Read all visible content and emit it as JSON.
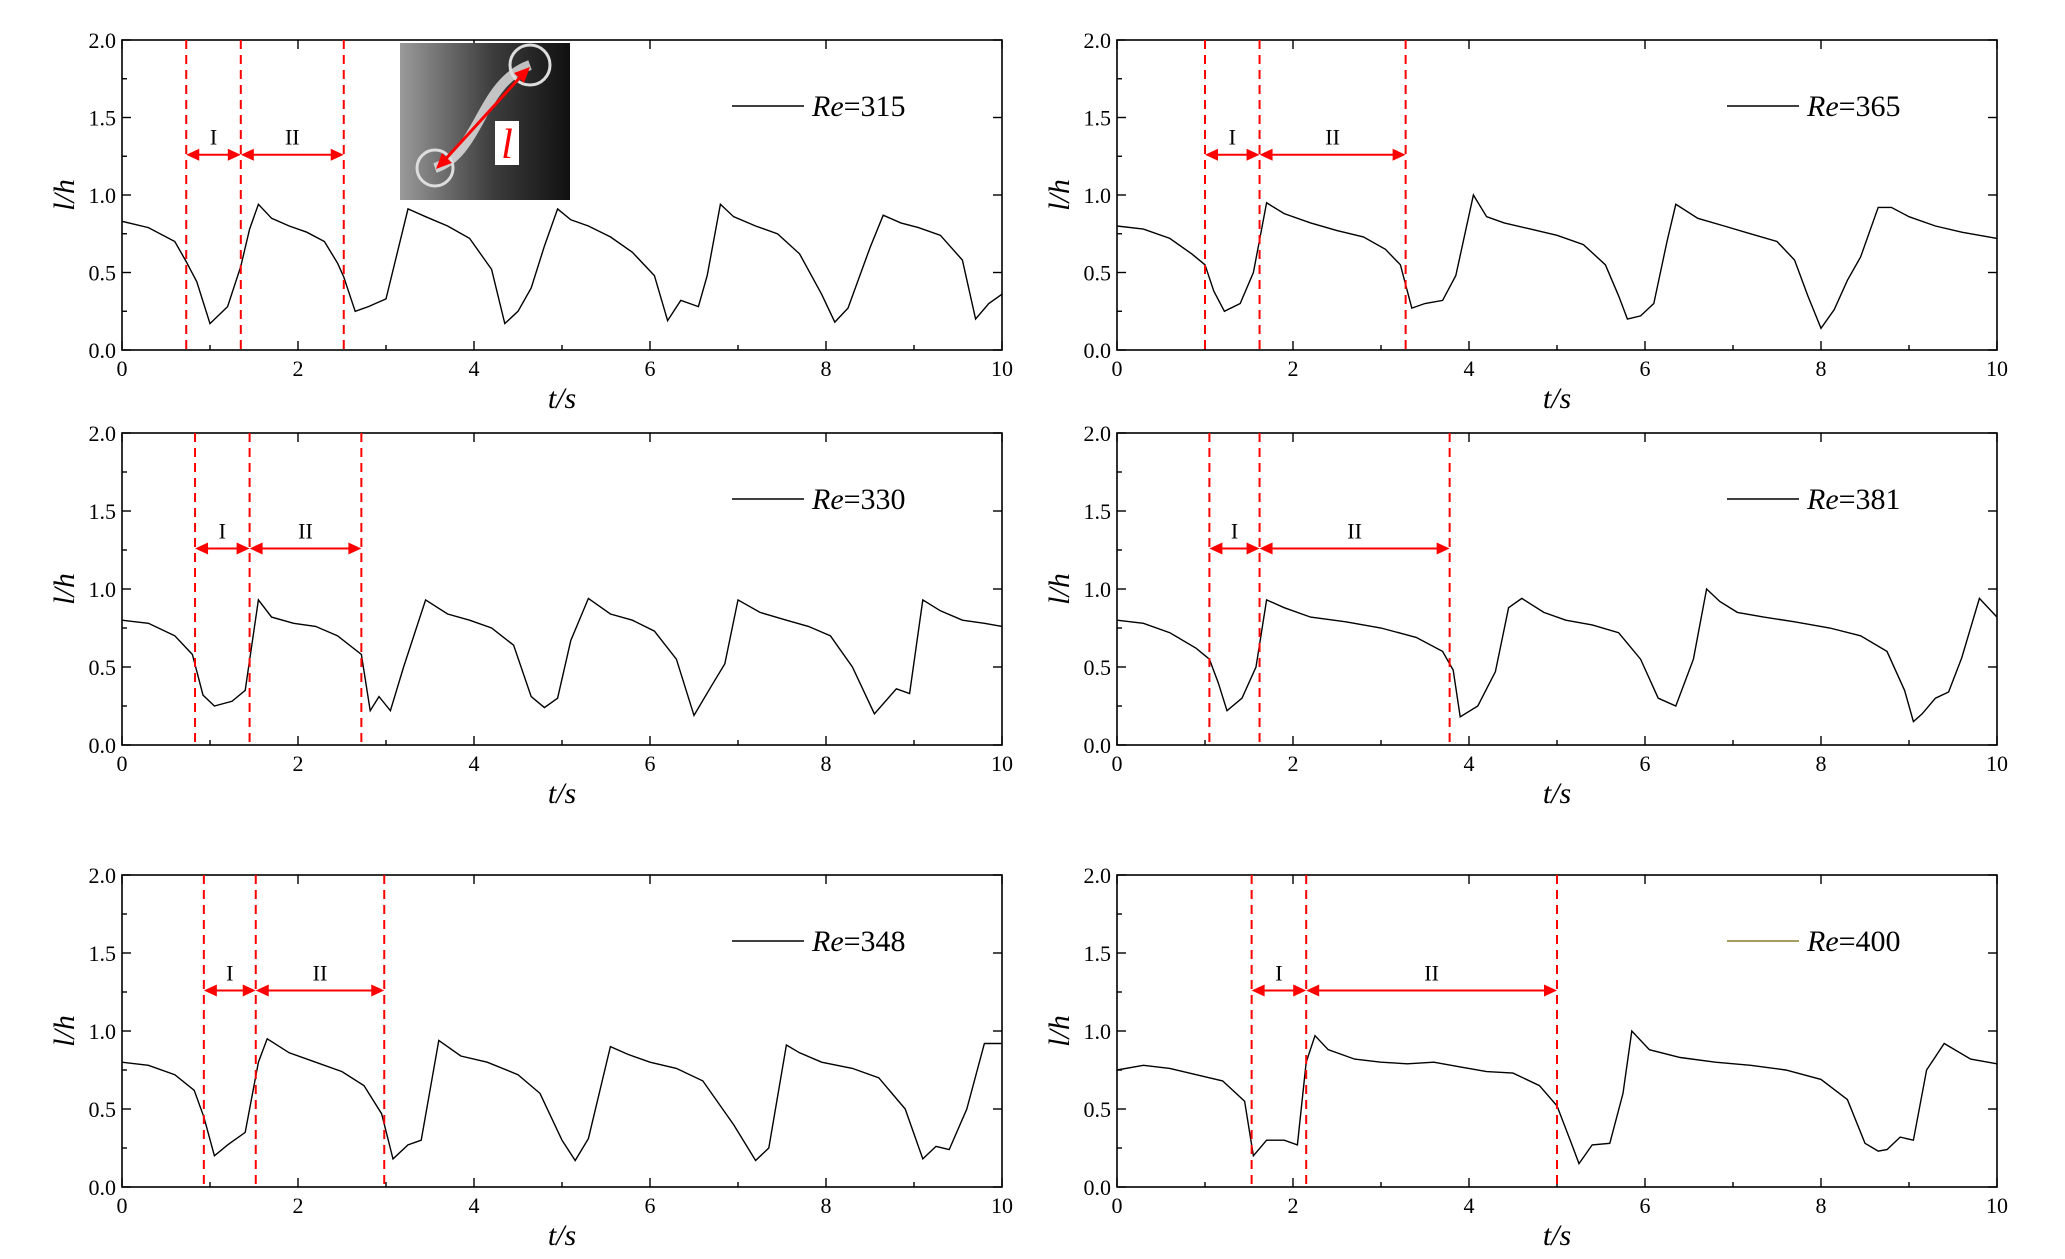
{
  "chart_data": [
    {
      "type": "line",
      "legend": "Re=315",
      "legend_color": "#000000",
      "legend_placement": "top-right",
      "xlabel": "t/s",
      "ylabel": "l/h",
      "xlim": [
        0,
        10
      ],
      "ylim": [
        0,
        2
      ],
      "xticks": [
        "0",
        "2",
        "4",
        "6",
        "8",
        "10"
      ],
      "yticks": [
        "0.0",
        "0.5",
        "1.0",
        "1.5",
        "2.0"
      ],
      "region_bounds": [
        0.73,
        1.35,
        2.52
      ],
      "regions": [
        "I",
        "II"
      ],
      "has_inset": true,
      "inset_label": "l",
      "series": [
        {
          "x": [
            0,
            0.3,
            0.6,
            0.73,
            0.85,
            1.0,
            1.2,
            1.35,
            1.45,
            1.55,
            1.7,
            1.9,
            2.1,
            2.3,
            2.45,
            2.52,
            2.65,
            2.8,
            3.0,
            3.25,
            3.45,
            3.7,
            3.95,
            4.2,
            4.35,
            4.5,
            4.65,
            4.8,
            4.95,
            5.1,
            5.3,
            5.55,
            5.8,
            6.05,
            6.2,
            6.35,
            6.55,
            6.65,
            6.8,
            6.95,
            7.2,
            7.45,
            7.7,
            7.95,
            8.1,
            8.25,
            8.5,
            8.65,
            8.85,
            9.05,
            9.3,
            9.55,
            9.7,
            9.85,
            10.0
          ],
          "y": [
            0.83,
            0.79,
            0.7,
            0.57,
            0.44,
            0.17,
            0.28,
            0.54,
            0.78,
            0.94,
            0.85,
            0.8,
            0.76,
            0.7,
            0.56,
            0.47,
            0.25,
            0.28,
            0.33,
            0.91,
            0.86,
            0.8,
            0.72,
            0.52,
            0.17,
            0.25,
            0.4,
            0.67,
            0.91,
            0.84,
            0.8,
            0.73,
            0.63,
            0.48,
            0.19,
            0.32,
            0.28,
            0.48,
            0.94,
            0.86,
            0.8,
            0.75,
            0.62,
            0.36,
            0.18,
            0.27,
            0.66,
            0.87,
            0.82,
            0.79,
            0.74,
            0.58,
            0.2,
            0.3,
            0.36
          ]
        }
      ]
    },
    {
      "type": "line",
      "legend": "Re=330",
      "legend_color": "#000000",
      "legend_placement": "top-right",
      "xlabel": "t/s",
      "ylabel": "l/h",
      "xlim": [
        0,
        10
      ],
      "ylim": [
        0,
        2
      ],
      "xticks": [
        "0",
        "2",
        "4",
        "6",
        "8",
        "10"
      ],
      "yticks": [
        "0.0",
        "0.5",
        "1.0",
        "1.5",
        "2.0"
      ],
      "region_bounds": [
        0.83,
        1.45,
        2.72
      ],
      "regions": [
        "I",
        "II"
      ],
      "has_inset": false,
      "series": [
        {
          "x": [
            0,
            0.3,
            0.6,
            0.8,
            0.92,
            1.05,
            1.25,
            1.4,
            1.55,
            1.7,
            1.95,
            2.2,
            2.45,
            2.72,
            2.82,
            2.92,
            3.05,
            3.2,
            3.45,
            3.7,
            3.95,
            4.2,
            4.45,
            4.65,
            4.8,
            4.95,
            5.1,
            5.3,
            5.55,
            5.8,
            6.05,
            6.3,
            6.5,
            6.7,
            6.85,
            7.0,
            7.25,
            7.55,
            7.8,
            8.05,
            8.3,
            8.55,
            8.8,
            8.95,
            9.1,
            9.3,
            9.55,
            9.8,
            10.0
          ],
          "y": [
            0.8,
            0.78,
            0.7,
            0.58,
            0.32,
            0.25,
            0.28,
            0.35,
            0.93,
            0.82,
            0.78,
            0.76,
            0.7,
            0.58,
            0.22,
            0.31,
            0.22,
            0.5,
            0.93,
            0.84,
            0.8,
            0.75,
            0.64,
            0.31,
            0.24,
            0.3,
            0.67,
            0.94,
            0.84,
            0.8,
            0.73,
            0.55,
            0.19,
            0.38,
            0.52,
            0.93,
            0.85,
            0.8,
            0.76,
            0.7,
            0.5,
            0.2,
            0.36,
            0.33,
            0.93,
            0.86,
            0.8,
            0.78,
            0.76
          ]
        }
      ]
    },
    {
      "type": "line",
      "legend": "Re=348",
      "legend_color": "#000000",
      "legend_placement": "top-right",
      "xlabel": "t/s",
      "ylabel": "l/h",
      "xlim": [
        0,
        10
      ],
      "ylim": [
        0,
        2
      ],
      "xticks": [
        "0",
        "2",
        "4",
        "6",
        "8",
        "10"
      ],
      "yticks": [
        "0.0",
        "0.5",
        "1.0",
        "1.5",
        "2.0"
      ],
      "region_bounds": [
        0.93,
        1.52,
        2.98
      ],
      "regions": [
        "I",
        "II"
      ],
      "has_inset": false,
      "series": [
        {
          "x": [
            0,
            0.3,
            0.6,
            0.82,
            0.93,
            1.05,
            1.2,
            1.4,
            1.55,
            1.65,
            1.9,
            2.2,
            2.5,
            2.75,
            2.95,
            3.08,
            3.25,
            3.4,
            3.6,
            3.85,
            4.15,
            4.5,
            4.75,
            5.0,
            5.15,
            5.3,
            5.55,
            5.75,
            6.0,
            6.3,
            6.6,
            6.95,
            7.2,
            7.35,
            7.55,
            7.7,
            7.95,
            8.3,
            8.6,
            8.9,
            9.1,
            9.25,
            9.4,
            9.6,
            9.8,
            10.0
          ],
          "y": [
            0.8,
            0.78,
            0.72,
            0.62,
            0.45,
            0.2,
            0.27,
            0.35,
            0.8,
            0.95,
            0.86,
            0.8,
            0.74,
            0.65,
            0.47,
            0.18,
            0.27,
            0.3,
            0.94,
            0.84,
            0.8,
            0.72,
            0.6,
            0.3,
            0.17,
            0.31,
            0.9,
            0.85,
            0.8,
            0.76,
            0.68,
            0.4,
            0.17,
            0.25,
            0.91,
            0.86,
            0.8,
            0.76,
            0.7,
            0.5,
            0.18,
            0.26,
            0.24,
            0.5,
            0.92,
            0.92
          ]
        }
      ]
    },
    {
      "type": "line",
      "legend": "Re=365",
      "legend_color": "#000000",
      "legend_placement": "top-right",
      "xlabel": "t/s",
      "ylabel": "l/h",
      "xlim": [
        0,
        10
      ],
      "ylim": [
        0,
        2
      ],
      "xticks": [
        "0",
        "2",
        "4",
        "6",
        "8",
        "10"
      ],
      "yticks": [
        "0.0",
        "0.5",
        "1.0",
        "1.5",
        "2.0"
      ],
      "region_bounds": [
        1.0,
        1.62,
        3.28
      ],
      "regions": [
        "I",
        "II"
      ],
      "has_inset": false,
      "series": [
        {
          "x": [
            0,
            0.3,
            0.6,
            0.85,
            1.0,
            1.1,
            1.22,
            1.4,
            1.55,
            1.7,
            1.9,
            2.2,
            2.5,
            2.8,
            3.05,
            3.22,
            3.35,
            3.5,
            3.7,
            3.85,
            4.05,
            4.2,
            4.4,
            4.7,
            5.0,
            5.3,
            5.55,
            5.7,
            5.8,
            5.95,
            6.1,
            6.25,
            6.35,
            6.6,
            6.9,
            7.2,
            7.5,
            7.7,
            7.85,
            8.0,
            8.15,
            8.3,
            8.45,
            8.65,
            8.8,
            9.0,
            9.3,
            9.6,
            10.0
          ],
          "y": [
            0.8,
            0.78,
            0.72,
            0.62,
            0.55,
            0.38,
            0.25,
            0.3,
            0.5,
            0.95,
            0.88,
            0.82,
            0.77,
            0.73,
            0.65,
            0.55,
            0.27,
            0.3,
            0.32,
            0.48,
            1.0,
            0.86,
            0.82,
            0.78,
            0.74,
            0.68,
            0.55,
            0.35,
            0.2,
            0.22,
            0.3,
            0.7,
            0.94,
            0.85,
            0.8,
            0.75,
            0.7,
            0.58,
            0.35,
            0.14,
            0.26,
            0.45,
            0.6,
            0.92,
            0.92,
            0.86,
            0.8,
            0.76,
            0.72
          ]
        }
      ]
    },
    {
      "type": "line",
      "legend": "Re=381",
      "legend_color": "#000000",
      "legend_placement": "top-right",
      "xlabel": "t/s",
      "ylabel": "l/h",
      "xlim": [
        0,
        10
      ],
      "ylim": [
        0,
        2
      ],
      "xticks": [
        "0",
        "2",
        "4",
        "6",
        "8",
        "10"
      ],
      "yticks": [
        "0.0",
        "0.5",
        "1.0",
        "1.5",
        "2.0"
      ],
      "region_bounds": [
        1.05,
        1.62,
        3.78
      ],
      "regions": [
        "I",
        "II"
      ],
      "has_inset": false,
      "series": [
        {
          "x": [
            0,
            0.3,
            0.6,
            0.9,
            1.05,
            1.15,
            1.25,
            1.42,
            1.58,
            1.7,
            1.9,
            2.2,
            2.6,
            3.0,
            3.4,
            3.7,
            3.82,
            3.9,
            4.1,
            4.3,
            4.45,
            4.6,
            4.85,
            5.1,
            5.4,
            5.7,
            5.95,
            6.15,
            6.35,
            6.55,
            6.7,
            6.85,
            7.05,
            7.35,
            7.7,
            8.1,
            8.45,
            8.75,
            8.95,
            9.05,
            9.15,
            9.3,
            9.45,
            9.6,
            9.8,
            10.0
          ],
          "y": [
            0.8,
            0.78,
            0.72,
            0.62,
            0.55,
            0.4,
            0.22,
            0.3,
            0.5,
            0.93,
            0.88,
            0.82,
            0.79,
            0.75,
            0.69,
            0.6,
            0.48,
            0.18,
            0.25,
            0.47,
            0.88,
            0.94,
            0.85,
            0.8,
            0.77,
            0.72,
            0.55,
            0.3,
            0.25,
            0.55,
            1.0,
            0.92,
            0.85,
            0.82,
            0.79,
            0.75,
            0.7,
            0.6,
            0.35,
            0.15,
            0.2,
            0.3,
            0.34,
            0.56,
            0.94,
            0.82
          ]
        }
      ]
    },
    {
      "type": "line",
      "legend": "Re=400",
      "legend_color": "#8b7d28",
      "legend_placement": "top-right",
      "xlabel": "t/s",
      "ylabel": "l/h",
      "xlim": [
        0,
        10
      ],
      "ylim": [
        0,
        2
      ],
      "xticks": [
        "0",
        "2",
        "4",
        "6",
        "8",
        "10"
      ],
      "yticks": [
        "0.0",
        "0.5",
        "1.0",
        "1.5",
        "2.0"
      ],
      "region_bounds": [
        1.53,
        2.15,
        5.0
      ],
      "regions": [
        "I",
        "II"
      ],
      "has_inset": false,
      "series": [
        {
          "x": [
            0,
            0.3,
            0.6,
            0.9,
            1.2,
            1.45,
            1.55,
            1.7,
            1.9,
            2.05,
            2.15,
            2.25,
            2.4,
            2.7,
            3.0,
            3.3,
            3.6,
            3.9,
            4.2,
            4.5,
            4.8,
            5.0,
            5.15,
            5.25,
            5.4,
            5.6,
            5.75,
            5.85,
            6.05,
            6.4,
            6.8,
            7.2,
            7.6,
            8.0,
            8.3,
            8.5,
            8.65,
            8.75,
            8.9,
            9.05,
            9.2,
            9.4,
            9.7,
            10.0
          ],
          "y": [
            0.75,
            0.78,
            0.76,
            0.72,
            0.68,
            0.55,
            0.2,
            0.3,
            0.3,
            0.27,
            0.8,
            0.97,
            0.88,
            0.82,
            0.8,
            0.79,
            0.8,
            0.77,
            0.74,
            0.73,
            0.65,
            0.52,
            0.3,
            0.15,
            0.27,
            0.28,
            0.6,
            1.0,
            0.88,
            0.83,
            0.8,
            0.78,
            0.75,
            0.69,
            0.56,
            0.28,
            0.23,
            0.24,
            0.32,
            0.3,
            0.75,
            0.92,
            0.82,
            0.79
          ]
        }
      ]
    }
  ]
}
